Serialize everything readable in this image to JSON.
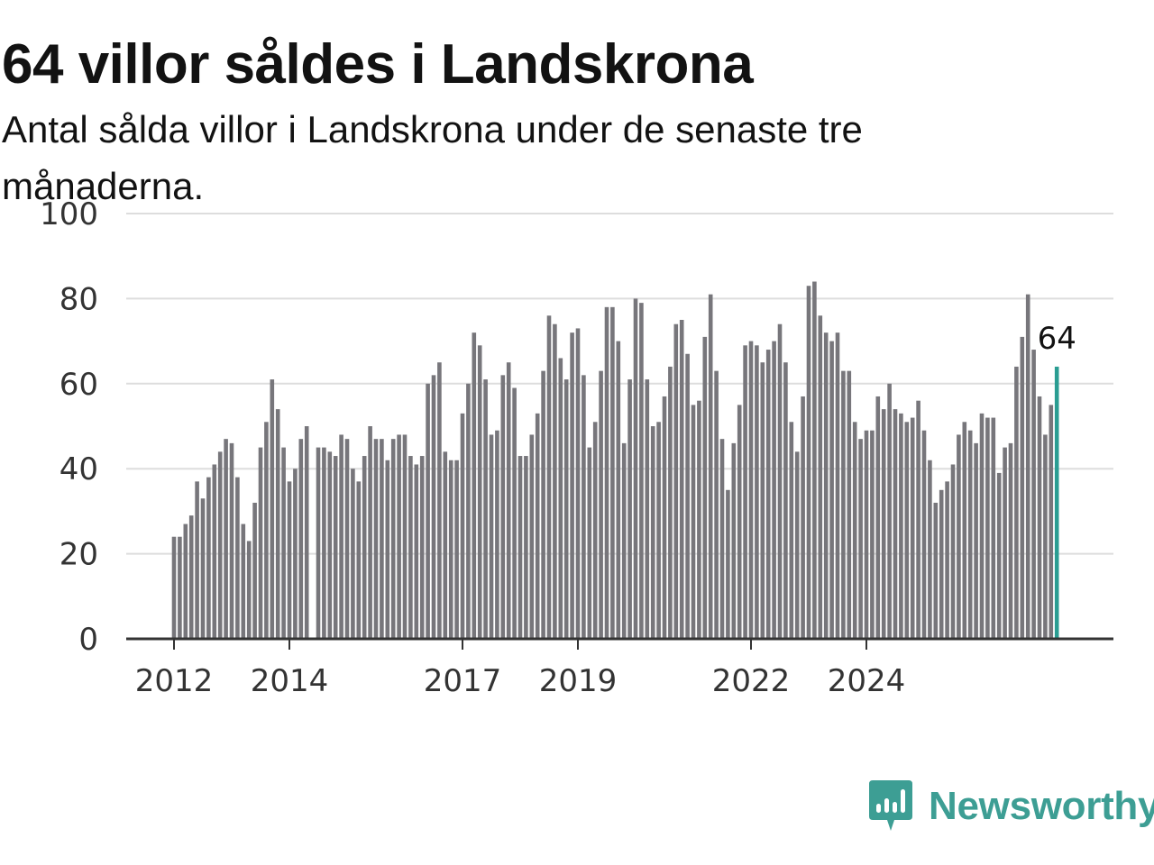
{
  "title": "64 villor såldes i Landskrona",
  "subtitle": "Antal sålda villor i Landskrona under de senaste tre månaderna.",
  "brand": {
    "name": "Newsworthy",
    "color": "#3d9e94"
  },
  "chart_data": {
    "type": "bar",
    "title": "64 villor såldes i Landskrona",
    "subtitle": "Antal sålda villor i Landskrona under de senaste tre månaderna.",
    "xlabel": "",
    "ylabel": "",
    "ylim": [
      0,
      100
    ],
    "yticks": [
      0,
      20,
      40,
      60,
      80,
      100
    ],
    "grid": true,
    "legend": "none",
    "bar_color": "#77767b",
    "highlight_color": "#2a9d92",
    "x_ticks": [
      {
        "label": "2012",
        "index": 0
      },
      {
        "label": "2014",
        "index": 20
      },
      {
        "label": "2017",
        "index": 50
      },
      {
        "label": "2019",
        "index": 70
      },
      {
        "label": "2022",
        "index": 100
      },
      {
        "label": "2024",
        "index": 120
      }
    ],
    "values": [
      24,
      24,
      27,
      29,
      37,
      33,
      38,
      41,
      44,
      47,
      46,
      38,
      27,
      23,
      32,
      45,
      51,
      61,
      54,
      45,
      37,
      40,
      47,
      50,
      null,
      45,
      45,
      44,
      43,
      48,
      47,
      40,
      37,
      43,
      50,
      47,
      47,
      42,
      47,
      48,
      48,
      43,
      41,
      43,
      60,
      62,
      65,
      44,
      42,
      42,
      53,
      60,
      72,
      69,
      61,
      48,
      49,
      62,
      65,
      59,
      43,
      43,
      48,
      53,
      63,
      76,
      74,
      66,
      61,
      72,
      73,
      62,
      45,
      51,
      63,
      78,
      78,
      70,
      46,
      61,
      80,
      79,
      61,
      50,
      51,
      57,
      64,
      74,
      75,
      67,
      55,
      56,
      71,
      81,
      63,
      47,
      35,
      46,
      55,
      69,
      70,
      69,
      65,
      68,
      70,
      74,
      65,
      51,
      44,
      57,
      83,
      84,
      76,
      72,
      70,
      72,
      63,
      63,
      51,
      47,
      49,
      49,
      57,
      54,
      60,
      54,
      53,
      51,
      52,
      56,
      49,
      42,
      32,
      35,
      37,
      41,
      48,
      51,
      49,
      46,
      53,
      52,
      52,
      39,
      45,
      46,
      64,
      71,
      81,
      68,
      57,
      48,
      55,
      64
    ],
    "highlight_label": "64"
  }
}
